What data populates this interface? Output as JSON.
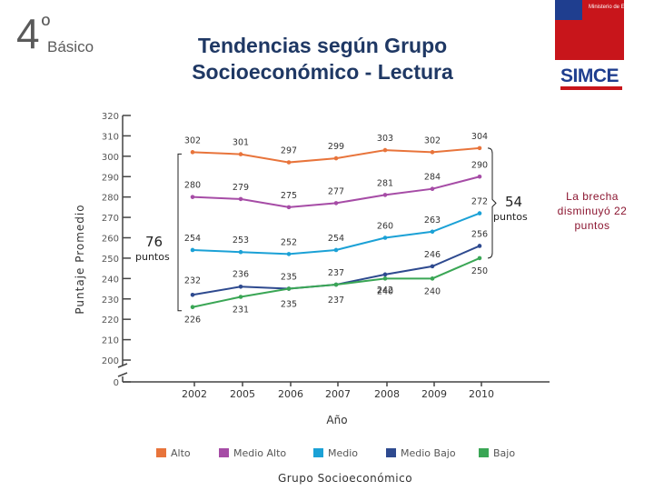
{
  "header": {
    "grade_number": "4",
    "grade_degree": "º",
    "grade_word": "Básico",
    "title_line1": "Tendencias según Grupo",
    "title_line2": "Socioeconómico - Lectura"
  },
  "logos": {
    "ministerio": "Ministerio de Educación",
    "simce": "SIMCE"
  },
  "annotation_note": "La brecha disminuyó 22 puntos",
  "brackets": {
    "left_value": "76",
    "left_unit": "puntos",
    "right_value": "54",
    "right_unit": "puntos"
  },
  "colors": {
    "Alto": "#e8743b",
    "Medio Alto": "#a64ca6",
    "Medio": "#1ba1d6",
    "Medio Bajo": "#2e4a8f",
    "Bajo": "#3aa655"
  },
  "chart_data": {
    "type": "line",
    "title": "Tendencias según Grupo Socioeconómico - Lectura",
    "xlabel": "Año",
    "ylabel": "Puntaje Promedio",
    "legend_title": "Grupo Socioeconómico",
    "legend_position": "bottom",
    "x": [
      "2002",
      "2005",
      "2006",
      "2007",
      "2008",
      "2009",
      "2010"
    ],
    "y_ticks": [
      0,
      200,
      210,
      220,
      230,
      240,
      250,
      260,
      270,
      280,
      290,
      300,
      310,
      320
    ],
    "ylim": [
      200,
      320
    ],
    "y_axis_break": true,
    "grid": false,
    "series": [
      {
        "name": "Alto",
        "values": [
          302,
          301,
          297,
          299,
          303,
          302,
          304
        ]
      },
      {
        "name": "Medio Alto",
        "values": [
          280,
          279,
          275,
          277,
          281,
          284,
          290
        ]
      },
      {
        "name": "Medio",
        "values": [
          254,
          253,
          252,
          254,
          260,
          263,
          272
        ]
      },
      {
        "name": "Medio Bajo",
        "values": [
          232,
          236,
          235,
          237,
          242,
          246,
          256
        ]
      },
      {
        "name": "Bajo",
        "values": [
          226,
          231,
          235,
          237,
          240,
          240,
          250
        ]
      }
    ]
  }
}
